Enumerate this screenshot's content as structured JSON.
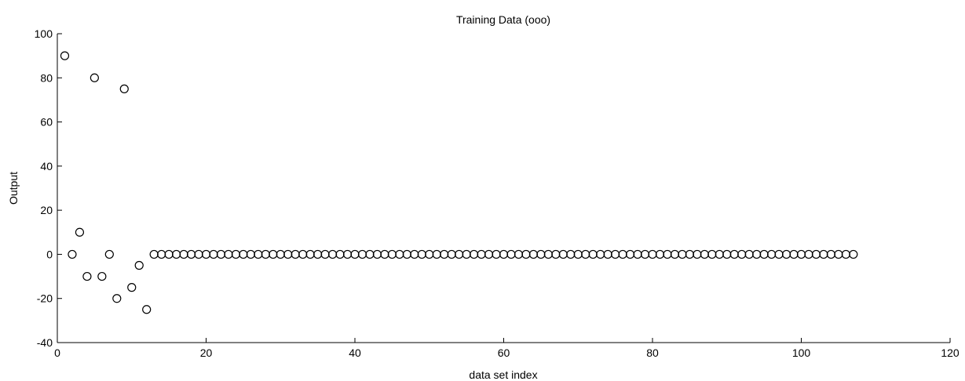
{
  "chart_data": {
    "type": "scatter",
    "title": "Training Data (ooo)",
    "xlabel": "data set index",
    "ylabel": "Output",
    "xlim": [
      0,
      120
    ],
    "ylim": [
      -40,
      100
    ],
    "xticks": [
      0,
      20,
      40,
      60,
      80,
      100,
      120
    ],
    "yticks": [
      -40,
      -20,
      0,
      20,
      40,
      60,
      80,
      100
    ],
    "grid": false,
    "marker": "open-circle",
    "marker_color": "#000000",
    "x": [
      1,
      2,
      3,
      4,
      5,
      6,
      7,
      8,
      9,
      10,
      11,
      12,
      13,
      14,
      15,
      16,
      17,
      18,
      19,
      20,
      21,
      22,
      23,
      24,
      25,
      26,
      27,
      28,
      29,
      30,
      31,
      32,
      33,
      34,
      35,
      36,
      37,
      38,
      39,
      40,
      41,
      42,
      43,
      44,
      45,
      46,
      47,
      48,
      49,
      50,
      51,
      52,
      53,
      54,
      55,
      56,
      57,
      58,
      59,
      60,
      61,
      62,
      63,
      64,
      65,
      66,
      67,
      68,
      69,
      70,
      71,
      72,
      73,
      74,
      75,
      76,
      77,
      78,
      79,
      80,
      81,
      82,
      83,
      84,
      85,
      86,
      87,
      88,
      89,
      90,
      91,
      92,
      93,
      94,
      95,
      96,
      97,
      98,
      99,
      100,
      101,
      102,
      103,
      104,
      105,
      106,
      107
    ],
    "y": [
      90,
      0,
      10,
      -10,
      80,
      -10,
      0,
      -20,
      75,
      -15,
      -5,
      -25,
      0,
      0,
      0,
      0,
      0,
      0,
      0,
      0,
      0,
      0,
      0,
      0,
      0,
      0,
      0,
      0,
      0,
      0,
      0,
      0,
      0,
      0,
      0,
      0,
      0,
      0,
      0,
      0,
      0,
      0,
      0,
      0,
      0,
      0,
      0,
      0,
      0,
      0,
      0,
      0,
      0,
      0,
      0,
      0,
      0,
      0,
      0,
      0,
      0,
      0,
      0,
      0,
      0,
      0,
      0,
      0,
      0,
      0,
      0,
      0,
      0,
      0,
      0,
      0,
      0,
      0,
      0,
      0,
      0,
      0,
      0,
      0,
      0,
      0,
      0,
      0,
      0,
      0,
      0,
      0,
      0,
      0,
      0,
      0,
      0,
      0,
      0,
      0,
      0,
      0,
      0,
      0,
      0,
      0,
      0
    ]
  }
}
